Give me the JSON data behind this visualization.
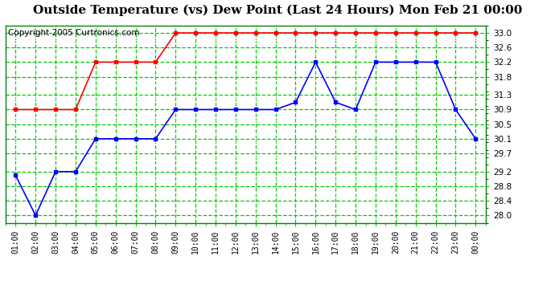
{
  "title": "Outside Temperature (vs) Dew Point (Last 24 Hours) Mon Feb 21 00:00",
  "copyright": "Copyright 2005 Curtronics.com",
  "x_labels": [
    "01:00",
    "02:00",
    "03:00",
    "04:00",
    "05:00",
    "06:00",
    "07:00",
    "08:00",
    "09:00",
    "10:00",
    "11:00",
    "12:00",
    "13:00",
    "14:00",
    "15:00",
    "16:00",
    "17:00",
    "18:00",
    "19:00",
    "20:00",
    "21:00",
    "22:00",
    "23:00",
    "00:00"
  ],
  "blue_data": [
    29.1,
    28.0,
    29.2,
    29.2,
    30.1,
    30.1,
    30.1,
    30.1,
    30.9,
    30.9,
    30.9,
    30.9,
    30.9,
    30.9,
    31.1,
    32.2,
    31.1,
    30.9,
    32.2,
    32.2,
    32.2,
    32.2,
    30.9,
    30.1
  ],
  "red_data": [
    30.9,
    30.9,
    30.9,
    30.9,
    32.2,
    32.2,
    32.2,
    32.2,
    33.0,
    33.0,
    33.0,
    33.0,
    33.0,
    33.0,
    33.0,
    33.0,
    33.0,
    33.0,
    33.0,
    33.0,
    33.0,
    33.0,
    33.0,
    33.0
  ],
  "ylim": [
    27.8,
    33.2
  ],
  "yticks": [
    28.0,
    28.4,
    28.8,
    29.2,
    29.7,
    30.1,
    30.5,
    30.9,
    31.3,
    31.8,
    32.2,
    32.6,
    33.0
  ],
  "blue_color": "#0000ff",
  "red_color": "#ff0000",
  "fig_bg_color": "#ffffff",
  "plot_bg": "#ffffff",
  "grid_color_major": "#00cc00",
  "grid_color_minor": "#00cc00",
  "title_fontsize": 11,
  "copyright_fontsize": 7.5,
  "border_color": "#008800"
}
